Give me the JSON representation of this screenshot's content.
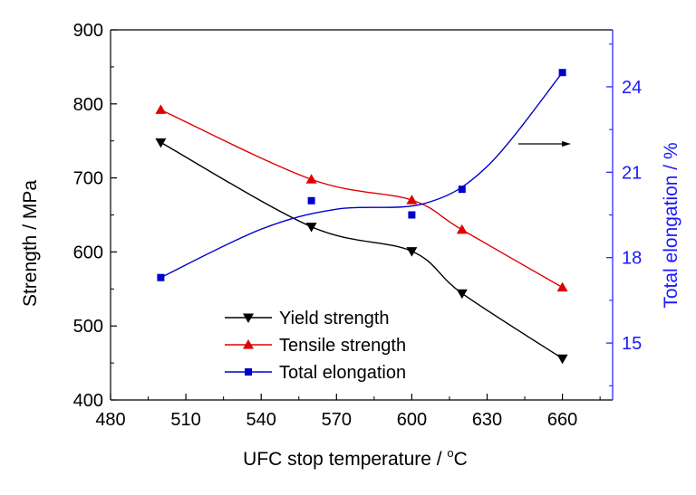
{
  "chart_data": {
    "type": "line",
    "title": "",
    "xlabel": "UFC stop temperature / °C",
    "xlabel_main": "UFC stop temperature / ",
    "xlabel_sup": "o",
    "xlabel_unit": "C",
    "ylabel": "Strength / MPa",
    "y2label": "Total elongation / %",
    "xlim": [
      480,
      680
    ],
    "ylim": [
      400,
      900
    ],
    "y2lim": [
      13,
      26
    ],
    "xticks": [
      480,
      510,
      540,
      570,
      600,
      630,
      660
    ],
    "yticks": [
      400,
      500,
      600,
      700,
      800,
      900
    ],
    "y2ticks": [
      15,
      18,
      21,
      24
    ],
    "x": [
      500,
      560,
      600,
      620,
      660
    ],
    "series": [
      {
        "name": "Yield strength",
        "axis": "left",
        "marker": "triangle-down",
        "color": "#000000",
        "values": [
          748,
          634,
          601,
          544,
          456
        ]
      },
      {
        "name": "Tensile strength",
        "axis": "left",
        "marker": "triangle-up",
        "color": "#e00000",
        "values": [
          792,
          698,
          670,
          630,
          552
        ]
      },
      {
        "name": "Total elongation",
        "axis": "right",
        "marker": "square",
        "color": "#0000cc",
        "values": [
          17.3,
          20.0,
          19.5,
          20.4,
          24.5
        ]
      }
    ],
    "annotation": "arrow pointing right toward right axis",
    "legend_position": "bottom-center",
    "axis_colors": {
      "left": "#000000",
      "right": "#1a1aff"
    },
    "grid": false
  }
}
